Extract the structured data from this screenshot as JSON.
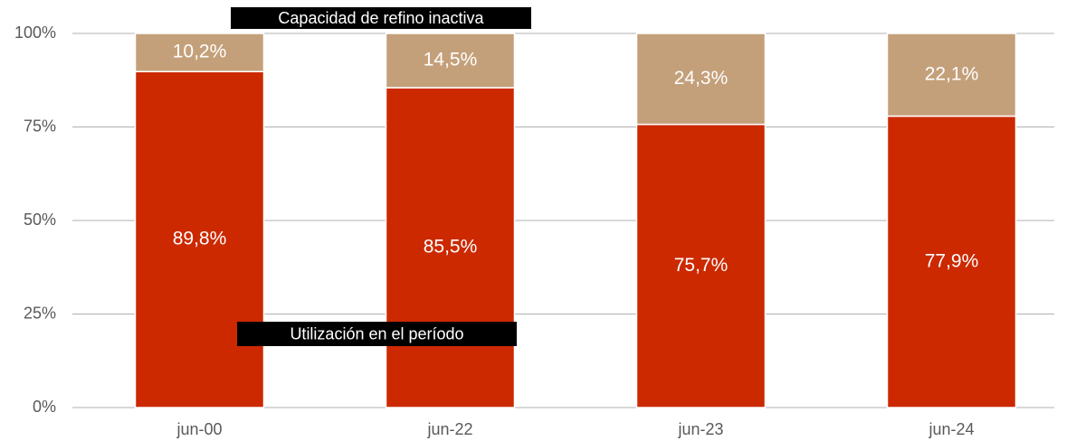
{
  "chart_data": {
    "type": "stacked_bar",
    "categories": [
      "jun-00",
      "jun-22",
      "jun-23",
      "jun-24"
    ],
    "series": [
      {
        "name": "Utilización en el período",
        "color": "#cc2900",
        "values": [
          89.8,
          85.5,
          75.7,
          77.9
        ],
        "value_labels": [
          "89,8%",
          "85,5%",
          "75,7%",
          "77,9%"
        ]
      },
      {
        "name": "Capacidad de refino inactiva",
        "color": "#c4a07a",
        "values": [
          10.2,
          14.5,
          24.3,
          22.1
        ],
        "value_labels": [
          "10,2%",
          "14,5%",
          "24,3%",
          "22,1%"
        ]
      }
    ],
    "ylim": [
      0,
      100
    ],
    "yticks": [
      {
        "value": 0,
        "label": "0%"
      },
      {
        "value": 25,
        "label": "25%"
      },
      {
        "value": 50,
        "label": "50%"
      },
      {
        "value": 75,
        "label": "75%"
      },
      {
        "value": 100,
        "label": "100%"
      }
    ],
    "grid": true
  }
}
